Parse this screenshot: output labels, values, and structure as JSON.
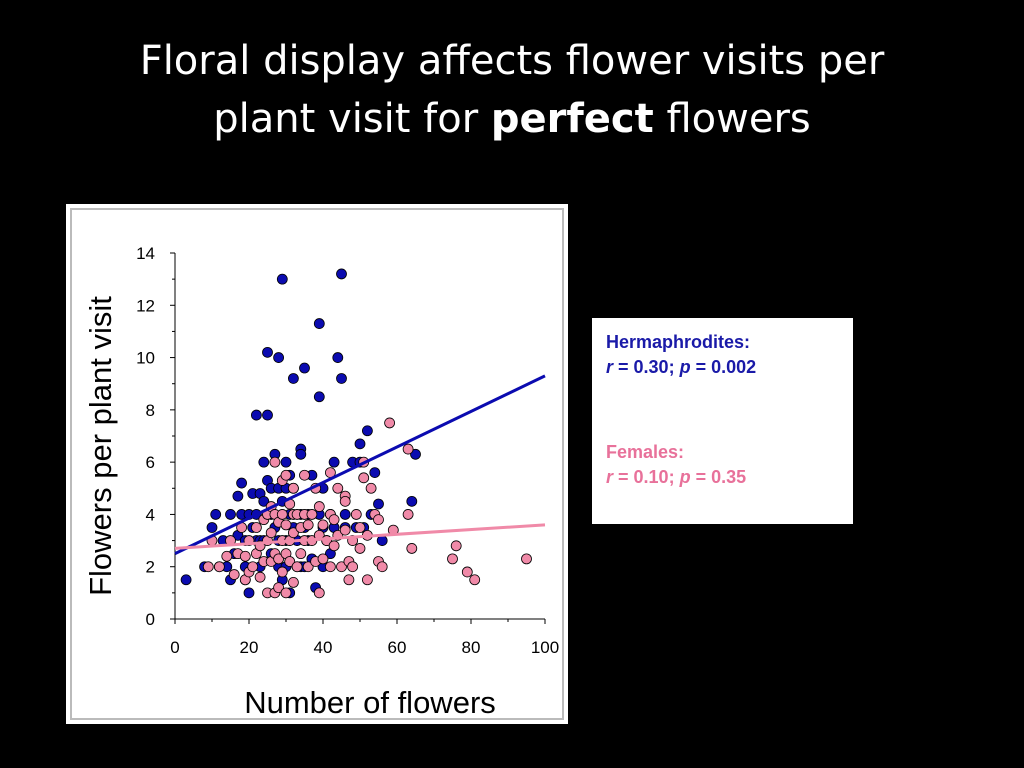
{
  "slide": {
    "title_line1": "Floral display affects flower visits per",
    "title_line2_prefix": "plant visit for ",
    "title_bold": "perfect",
    "title_line2_suffix": " flowers"
  },
  "stats": {
    "hermaphrodites": {
      "label": "Hermaphrodites:",
      "r_symbol": "r",
      "r_text": " = 0.30; ",
      "p_symbol": "p",
      "p_text": " = 0.002",
      "color": "#0a0aa8"
    },
    "females": {
      "label": "Females:",
      "r_symbol": "r",
      "r_text": " = 0.10; ",
      "p_symbol": "p",
      "p_text": " = 0.35",
      "color": "#f07aa0"
    }
  },
  "chart_data": {
    "type": "scatter",
    "xlabel": "Number of flowers",
    "ylabel": "Flowers per plant visit",
    "xlim": [
      0,
      100
    ],
    "ylim": [
      0,
      14
    ],
    "xticks": [
      "0",
      "20",
      "40",
      "60",
      "80",
      "100"
    ],
    "yticks": [
      "0",
      "2",
      "4",
      "6",
      "8",
      "10",
      "12",
      "14"
    ],
    "series": [
      {
        "name": "Hermaphrodites",
        "color": "#0b0bb0",
        "trendline": {
          "x": [
            0,
            100
          ],
          "y": [
            2.5,
            9.3
          ]
        },
        "points": [
          [
            3,
            1.5
          ],
          [
            8,
            2
          ],
          [
            10,
            3.5
          ],
          [
            11,
            4
          ],
          [
            12,
            2
          ],
          [
            13,
            3
          ],
          [
            14,
            2
          ],
          [
            15,
            1.5
          ],
          [
            15,
            4
          ],
          [
            16,
            2.5
          ],
          [
            17,
            4.7
          ],
          [
            17,
            3.2
          ],
          [
            18,
            4
          ],
          [
            18,
            5.2
          ],
          [
            19,
            3
          ],
          [
            19,
            2
          ],
          [
            19,
            1.5
          ],
          [
            20,
            4
          ],
          [
            20,
            1
          ],
          [
            21,
            3.5
          ],
          [
            21,
            4.8
          ],
          [
            22,
            3
          ],
          [
            22,
            4
          ],
          [
            22,
            7.8
          ],
          [
            23,
            2
          ],
          [
            23,
            3
          ],
          [
            23,
            4.8
          ],
          [
            24,
            6
          ],
          [
            24,
            4.5
          ],
          [
            24,
            3
          ],
          [
            25,
            5.3
          ],
          [
            25,
            7.8
          ],
          [
            25,
            10.2
          ],
          [
            26,
            4
          ],
          [
            26,
            5
          ],
          [
            26,
            2.5
          ],
          [
            27,
            6.3
          ],
          [
            27,
            3.5
          ],
          [
            28,
            10
          ],
          [
            28,
            5
          ],
          [
            28,
            3
          ],
          [
            28,
            2
          ],
          [
            29,
            13
          ],
          [
            29,
            4.5
          ],
          [
            29,
            1.5
          ],
          [
            30,
            6
          ],
          [
            30,
            5
          ],
          [
            30,
            3
          ],
          [
            30,
            2
          ],
          [
            31,
            5.5
          ],
          [
            31,
            4
          ],
          [
            31,
            1
          ],
          [
            32,
            9.2
          ],
          [
            32,
            5
          ],
          [
            32,
            3.5
          ],
          [
            33,
            3
          ],
          [
            33,
            2
          ],
          [
            34,
            6.5
          ],
          [
            34,
            6.3
          ],
          [
            34,
            4
          ],
          [
            34,
            2
          ],
          [
            35,
            9.6
          ],
          [
            35,
            3.5
          ],
          [
            35,
            2
          ],
          [
            36,
            4
          ],
          [
            36,
            3
          ],
          [
            37,
            5.5
          ],
          [
            37,
            2.3
          ],
          [
            38,
            1.2
          ],
          [
            39,
            11.3
          ],
          [
            39,
            8.5
          ],
          [
            39,
            4
          ],
          [
            40,
            5
          ],
          [
            40,
            3.5
          ],
          [
            40,
            2
          ],
          [
            41,
            3
          ],
          [
            42,
            4
          ],
          [
            42,
            2.5
          ],
          [
            43,
            6
          ],
          [
            43,
            3.5
          ],
          [
            44,
            10
          ],
          [
            45,
            13.2
          ],
          [
            45,
            9.2
          ],
          [
            46,
            4
          ],
          [
            46,
            3.5
          ],
          [
            48,
            6
          ],
          [
            49,
            3.5
          ],
          [
            50,
            6.7
          ],
          [
            50,
            6
          ],
          [
            51,
            3.5
          ],
          [
            52,
            7.2
          ],
          [
            53,
            4
          ],
          [
            54,
            5.6
          ],
          [
            55,
            4.4
          ],
          [
            56,
            3
          ],
          [
            64,
            4.5
          ],
          [
            65,
            6.3
          ]
        ]
      },
      {
        "name": "Females",
        "color": "#f08aa8",
        "trendline": {
          "x": [
            0,
            100
          ],
          "y": [
            2.7,
            3.6
          ]
        },
        "points": [
          [
            9,
            2
          ],
          [
            10,
            3
          ],
          [
            12,
            2
          ],
          [
            14,
            2.4
          ],
          [
            15,
            3
          ],
          [
            16,
            1.7
          ],
          [
            17,
            2.5
          ],
          [
            18,
            3.5
          ],
          [
            19,
            2.4
          ],
          [
            19,
            1.5
          ],
          [
            20,
            3
          ],
          [
            20,
            1.8
          ],
          [
            21,
            2
          ],
          [
            22,
            3.5
          ],
          [
            22,
            2.5
          ],
          [
            23,
            2.8
          ],
          [
            23,
            1.6
          ],
          [
            24,
            3.8
          ],
          [
            24,
            2.2
          ],
          [
            25,
            4
          ],
          [
            25,
            3
          ],
          [
            25,
            1
          ],
          [
            26,
            4.3
          ],
          [
            26,
            3.3
          ],
          [
            26,
            2.2
          ],
          [
            27,
            6
          ],
          [
            27,
            4
          ],
          [
            27,
            2.5
          ],
          [
            27,
            1
          ],
          [
            28,
            3.7
          ],
          [
            28,
            2.3
          ],
          [
            28,
            1.2
          ],
          [
            29,
            5.3
          ],
          [
            29,
            4
          ],
          [
            29,
            3
          ],
          [
            29,
            1.8
          ],
          [
            30,
            5.5
          ],
          [
            30,
            3.6
          ],
          [
            30,
            2.5
          ],
          [
            30,
            1
          ],
          [
            31,
            4.4
          ],
          [
            31,
            3
          ],
          [
            31,
            2.2
          ],
          [
            32,
            5
          ],
          [
            32,
            4
          ],
          [
            32,
            3.3
          ],
          [
            32,
            1.4
          ],
          [
            33,
            4
          ],
          [
            33,
            2
          ],
          [
            34,
            3.5
          ],
          [
            34,
            2.5
          ],
          [
            35,
            5.5
          ],
          [
            35,
            4
          ],
          [
            35,
            3
          ],
          [
            36,
            3.6
          ],
          [
            36,
            2
          ],
          [
            37,
            4
          ],
          [
            37,
            3
          ],
          [
            38,
            5
          ],
          [
            38,
            2.2
          ],
          [
            39,
            4.3
          ],
          [
            39,
            3.2
          ],
          [
            39,
            1
          ],
          [
            40,
            3.6
          ],
          [
            40,
            2.3
          ],
          [
            41,
            3
          ],
          [
            42,
            5.6
          ],
          [
            42,
            4
          ],
          [
            42,
            2
          ],
          [
            43,
            3.8
          ],
          [
            43,
            2.8
          ],
          [
            44,
            3.2
          ],
          [
            44,
            5
          ],
          [
            45,
            2
          ],
          [
            46,
            4.7
          ],
          [
            46,
            4.5
          ],
          [
            46,
            3.4
          ],
          [
            47,
            2.2
          ],
          [
            47,
            1.5
          ],
          [
            48,
            3
          ],
          [
            48,
            2
          ],
          [
            49,
            4
          ],
          [
            50,
            3.5
          ],
          [
            50,
            2.7
          ],
          [
            51,
            6
          ],
          [
            51,
            5.4
          ],
          [
            52,
            3.2
          ],
          [
            52,
            1.5
          ],
          [
            53,
            5
          ],
          [
            54,
            4
          ],
          [
            55,
            3.8
          ],
          [
            55,
            2.2
          ],
          [
            56,
            2
          ],
          [
            58,
            7.5
          ],
          [
            59,
            3.4
          ],
          [
            63,
            6.5
          ],
          [
            63,
            4
          ],
          [
            64,
            2.7
          ],
          [
            75,
            2.3
          ],
          [
            76,
            2.8
          ],
          [
            79,
            1.8
          ],
          [
            81,
            1.5
          ],
          [
            95,
            2.3
          ]
        ]
      }
    ]
  }
}
